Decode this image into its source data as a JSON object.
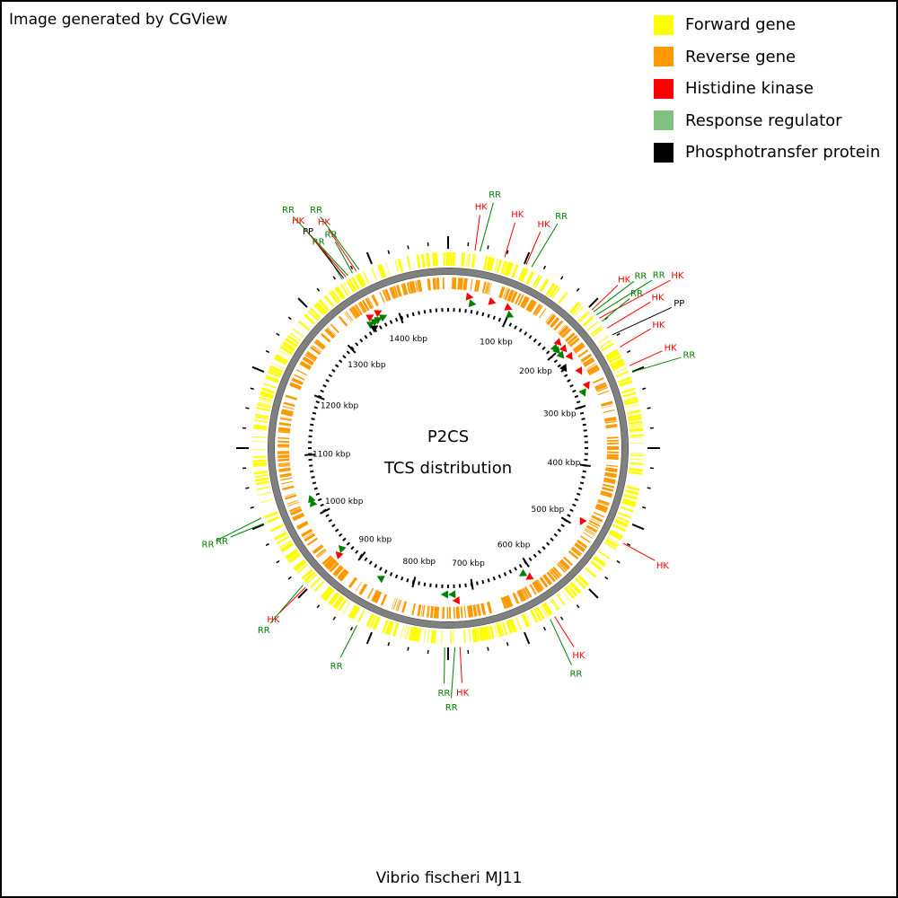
{
  "credit": "Image generated by CGView",
  "legend": [
    {
      "label": "Forward gene",
      "color": "#ffff00"
    },
    {
      "label": "Reverse gene",
      "color": "#ff9900"
    },
    {
      "label": "Histidine kinase",
      "color": "#ff0000"
    },
    {
      "label": "Response regulator",
      "color": "#80c080"
    },
    {
      "label": "Phosphotransfer protein",
      "color": "#000000"
    }
  ],
  "center_title": "P2CS",
  "center_subtitle": "TCS distribution",
  "footer": "Vibrio fischeri MJ11",
  "colors": {
    "forward": "#ffff00",
    "reverse": "#ff9900",
    "hk": "#ff0000",
    "rr": "#008000",
    "pp": "#000000",
    "backbone": "#808080",
    "hk_label": "#ff0000",
    "rr_label": "#008000",
    "pp_label": "#000000"
  },
  "genome": {
    "total_kbp": 1482,
    "tick_labels": [
      "100 kbp",
      "200 kbp",
      "300 kbp",
      "400 kbp",
      "500 kbp",
      "600 kbp",
      "700 kbp",
      "800 kbp",
      "900 kbp",
      "1000 kbp",
      "1100 kbp",
      "1200 kbp",
      "1300 kbp",
      "1400 kbp"
    ],
    "tick_kbp": [
      100,
      200,
      300,
      400,
      500,
      600,
      700,
      800,
      900,
      1000,
      1100,
      1200,
      1300,
      1400
    ]
  },
  "annotations": [
    {
      "label": "HK",
      "type": "hk",
      "kbp": 32
    },
    {
      "label": "RR",
      "type": "rr",
      "kbp": 38
    },
    {
      "label": "HK",
      "type": "hk",
      "kbp": 68
    },
    {
      "label": "HK",
      "type": "hk",
      "kbp": 95
    },
    {
      "label": "RR",
      "type": "rr",
      "kbp": 102
    },
    {
      "label": "HK",
      "type": "hk",
      "kbp": 190
    },
    {
      "label": "RR",
      "type": "rr",
      "kbp": 193
    },
    {
      "label": "RR",
      "type": "rr",
      "kbp": 198
    },
    {
      "label": "HK",
      "type": "hk",
      "kbp": 203
    },
    {
      "label": "RR",
      "type": "rr",
      "kbp": 208
    },
    {
      "label": "HK",
      "type": "hk",
      "kbp": 218
    },
    {
      "label": "PP",
      "type": "pp",
      "kbp": 228
    },
    {
      "label": "HK",
      "type": "hk",
      "kbp": 245
    },
    {
      "label": "HK",
      "type": "hk",
      "kbp": 270
    },
    {
      "label": "RR",
      "type": "rr",
      "kbp": 278
    },
    {
      "label": "HK",
      "type": "hk",
      "kbp": 488
    },
    {
      "label": "HK",
      "type": "hk",
      "kbp": 608
    },
    {
      "label": "RR",
      "type": "rr",
      "kbp": 614
    },
    {
      "label": "HK",
      "type": "hk",
      "kbp": 727
    },
    {
      "label": "RR",
      "type": "rr",
      "kbp": 733
    },
    {
      "label": "RR",
      "type": "rr",
      "kbp": 745
    },
    {
      "label": "RR",
      "type": "rr",
      "kbp": 853
    },
    {
      "label": "HK",
      "type": "hk",
      "kbp": 929
    },
    {
      "label": "RR",
      "type": "rr",
      "kbp": 933
    },
    {
      "label": "RR",
      "type": "rr",
      "kbp": 1020
    },
    {
      "label": "RR",
      "type": "rr",
      "kbp": 1027
    },
    {
      "label": "RR",
      "type": "rr",
      "kbp": 1350
    },
    {
      "label": "PP",
      "type": "pp",
      "kbp": 1352
    },
    {
      "label": "HK",
      "type": "hk",
      "kbp": 1355
    },
    {
      "label": "RR",
      "type": "rr",
      "kbp": 1358
    },
    {
      "label": "RR",
      "type": "rr",
      "kbp": 1364
    },
    {
      "label": "HK",
      "type": "hk",
      "kbp": 1369
    },
    {
      "label": "RR",
      "type": "rr",
      "kbp": 1373
    }
  ]
}
